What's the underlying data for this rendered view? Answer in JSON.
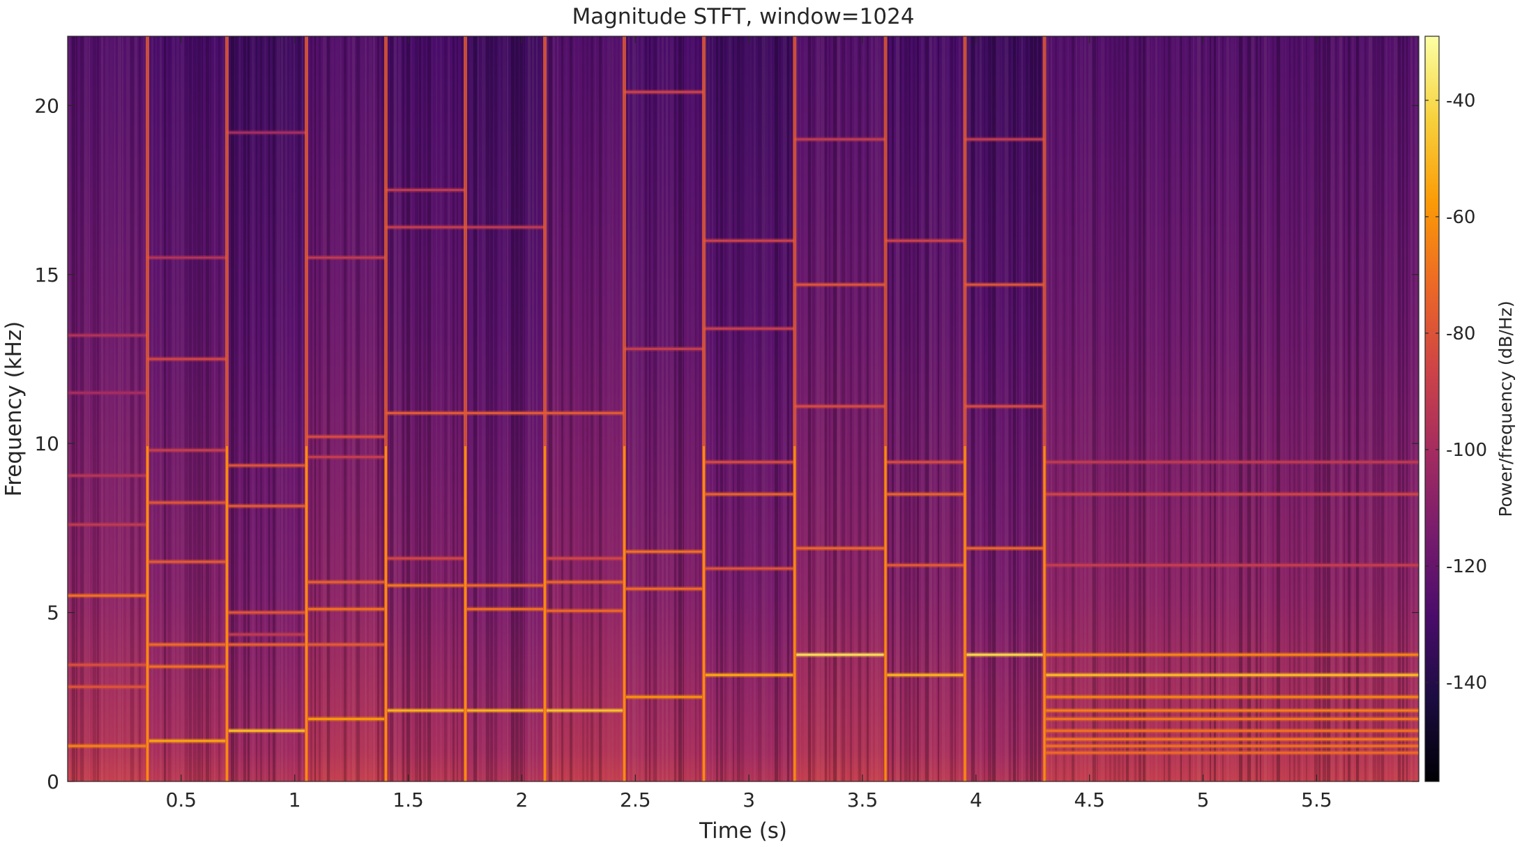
{
  "chart_data": {
    "type": "heatmap",
    "title": "Magnitude STFT, window=1024",
    "xlabel": "Time (s)",
    "ylabel": "Frequency (kHz)",
    "xlim": [
      0,
      5.95
    ],
    "ylim": [
      0,
      22.05
    ],
    "x_ticks": [
      0.5,
      1,
      1.5,
      2,
      2.5,
      3,
      3.5,
      4,
      4.5,
      5,
      5.5
    ],
    "x_tick_labels": [
      "0.5",
      "1",
      "1.5",
      "2",
      "2.5",
      "3",
      "3.5",
      "4",
      "4.5",
      "5",
      "5.5"
    ],
    "y_ticks": [
      0,
      5,
      10,
      15,
      20
    ],
    "y_tick_labels": [
      "0",
      "5",
      "10",
      "15",
      "20"
    ],
    "colorbar": {
      "label": "Power/frequency (dB/Hz)",
      "range": [
        -157,
        -29
      ],
      "ticks": [
        -40,
        -60,
        -80,
        -100,
        -120,
        -140
      ],
      "tick_labels": [
        "-40",
        "-60",
        "-80",
        "-100",
        "-120",
        "-140"
      ],
      "colormap": "inferno",
      "stops": [
        "#000004",
        "#1b0c41",
        "#4a0c6b",
        "#781c6d",
        "#a52c60",
        "#cf4446",
        "#ed6925",
        "#fb9b06",
        "#f7d13d",
        "#fcffa4"
      ]
    },
    "noise_floor_db": [
      -135,
      -125,
      -128,
      -122,
      -120,
      -118,
      -117,
      -118,
      -122,
      -130,
      -122,
      -120,
      -122,
      -118,
      -126,
      -132
    ],
    "segments": [
      {
        "start": 0.0,
        "end": 0.35,
        "partials_khz": [
          1.05,
          2.8,
          3.45,
          5.5,
          7.6,
          9.05,
          11.5,
          13.2
        ],
        "peak_db": [
          -65,
          -80,
          -82,
          -70,
          -92,
          -95,
          -100,
          -96
        ]
      },
      {
        "start": 0.35,
        "end": 0.7,
        "partials_khz": [
          1.2,
          3.4,
          4.05,
          6.5,
          8.25,
          9.8,
          12.5,
          15.5
        ],
        "peak_db": [
          -55,
          -70,
          -72,
          -78,
          -80,
          -90,
          -86,
          -96
        ]
      },
      {
        "start": 0.7,
        "end": 1.05,
        "partials_khz": [
          1.5,
          4.05,
          4.35,
          5.0,
          8.15,
          9.35,
          19.2
        ],
        "peak_db": [
          -50,
          -76,
          -92,
          -80,
          -78,
          -80,
          -100
        ]
      },
      {
        "start": 1.05,
        "end": 1.4,
        "partials_khz": [
          1.85,
          4.05,
          5.1,
          5.9,
          9.6,
          10.2,
          15.5
        ],
        "peak_db": [
          -58,
          -78,
          -70,
          -76,
          -90,
          -84,
          -92
        ]
      },
      {
        "start": 1.4,
        "end": 1.75,
        "partials_khz": [
          2.1,
          5.8,
          6.6,
          10.9,
          16.4,
          17.5
        ],
        "peak_db": [
          -52,
          -68,
          -86,
          -78,
          -90,
          -92
        ]
      },
      {
        "start": 1.75,
        "end": 2.1,
        "partials_khz": [
          2.1,
          5.1,
          5.8,
          10.9,
          16.4
        ],
        "peak_db": [
          -52,
          -70,
          -72,
          -78,
          -92
        ]
      },
      {
        "start": 2.1,
        "end": 2.45,
        "partials_khz": [
          2.1,
          5.05,
          5.9,
          6.6,
          10.9
        ],
        "peak_db": [
          -48,
          -72,
          -74,
          -86,
          -78
        ]
      },
      {
        "start": 2.45,
        "end": 2.8,
        "partials_khz": [
          2.5,
          5.7,
          6.8,
          12.8,
          20.4
        ],
        "peak_db": [
          -60,
          -72,
          -70,
          -90,
          -88
        ]
      },
      {
        "start": 2.8,
        "end": 3.2,
        "partials_khz": [
          3.15,
          6.3,
          8.5,
          9.45,
          13.4,
          16.0
        ],
        "peak_db": [
          -55,
          -80,
          -74,
          -84,
          -90,
          -88
        ]
      },
      {
        "start": 3.2,
        "end": 3.6,
        "partials_khz": [
          3.75,
          6.9,
          11.1,
          14.7,
          19.0
        ],
        "peak_db": [
          -40,
          -74,
          -84,
          -80,
          -92
        ]
      },
      {
        "start": 3.6,
        "end": 3.95,
        "partials_khz": [
          3.15,
          6.4,
          8.5,
          9.45,
          16.0
        ],
        "peak_db": [
          -52,
          -78,
          -74,
          -84,
          -88
        ]
      },
      {
        "start": 3.95,
        "end": 4.3,
        "partials_khz": [
          3.75,
          6.9,
          11.1,
          14.7,
          19.0
        ],
        "peak_db": [
          -42,
          -74,
          -84,
          -80,
          -92
        ]
      },
      {
        "start": 4.3,
        "end": 5.95,
        "partials_khz": [
          0.85,
          1.05,
          1.25,
          1.5,
          1.85,
          2.1,
          2.5,
          3.15,
          3.75,
          6.4,
          8.5,
          9.45
        ],
        "peak_db": [
          -72,
          -70,
          -68,
          -70,
          -68,
          -66,
          -64,
          -50,
          -64,
          -90,
          -86,
          -92
        ]
      }
    ]
  }
}
